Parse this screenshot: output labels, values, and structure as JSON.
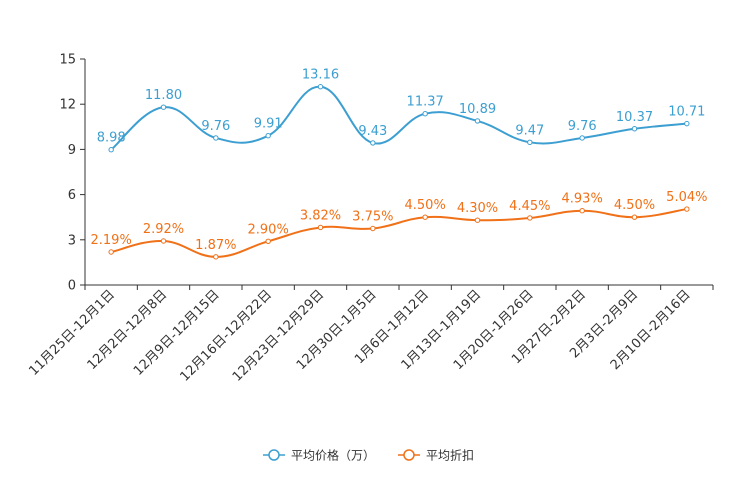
{
  "chart_data": {
    "type": "line",
    "title": "",
    "xlabel": "",
    "ylabel": "",
    "ylim": [
      0,
      15
    ],
    "yticks": [
      0,
      3,
      6,
      9,
      12,
      15
    ],
    "grid": false,
    "legend_position": "bottom",
    "categories": [
      "11月25日-12月1日",
      "12月2日-12月8日",
      "12月9日-12月15日",
      "12月16日-12月22日",
      "12月23日-12月29日",
      "12月30日-1月5日",
      "1月6日-1月12日",
      "1月13日-1月19日",
      "1月20日-1月26日",
      "1月27日-2月2日",
      "2月3日-2月9日",
      "2月10日-2月16日"
    ],
    "series": [
      {
        "name": "平均价格（万）",
        "color": "#3d9fd1",
        "values": [
          8.98,
          11.8,
          9.76,
          9.91,
          13.16,
          9.43,
          11.37,
          10.89,
          9.47,
          9.76,
          10.37,
          10.71
        ],
        "labels": [
          "8.98",
          "11.80",
          "9.76",
          "9.91",
          "13.16",
          "9.43",
          "11.37",
          "10.89",
          "9.47",
          "9.76",
          "10.37",
          "10.71"
        ]
      },
      {
        "name": "平均折扣",
        "color": "#f07118",
        "values": [
          2.19,
          2.92,
          1.87,
          2.9,
          3.82,
          3.75,
          4.5,
          4.3,
          4.45,
          4.93,
          4.5,
          5.04
        ],
        "labels": [
          "2.19%",
          "2.92%",
          "1.87%",
          "2.90%",
          "3.82%",
          "3.75%",
          "4.50%",
          "4.30%",
          "4.45%",
          "4.93%",
          "4.50%",
          "5.04%"
        ]
      }
    ]
  }
}
